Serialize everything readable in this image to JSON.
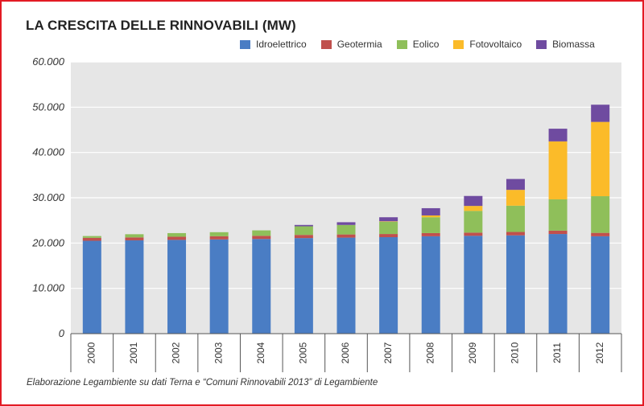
{
  "title": "LA CRESCITA DELLE RINNOVABILI (MW)",
  "caption": "Elaborazione Legambiente su dati Terna e “Comuni Rinnovabili 2013” di Legambiente",
  "colors": {
    "Idroelettrico": "#4a7dc4",
    "Geotermia": "#c0504d",
    "Eolico": "#8fbf5a",
    "Fotovoltaico": "#fbbb29",
    "Biomassa": "#6f4ba0",
    "plot_bg": "#e6e6e6",
    "grid": "#ffffff"
  },
  "chart_data": {
    "type": "bar",
    "stacked": true,
    "title": "LA CRESCITA DELLE RINNOVABILI (MW)",
    "xlabel": "",
    "ylabel": "",
    "ylim": [
      0,
      60000
    ],
    "yticks": [
      0,
      10000,
      20000,
      30000,
      40000,
      50000,
      60000
    ],
    "ytick_labels": [
      "0",
      "10.000",
      "20.000",
      "30.000",
      "40.000",
      "50.000",
      "60.000"
    ],
    "grid": true,
    "legend_position": "top",
    "categories": [
      "2000",
      "2001",
      "2002",
      "2003",
      "2004",
      "2005",
      "2006",
      "2007",
      "2008",
      "2009",
      "2010",
      "2011",
      "2012"
    ],
    "series": [
      {
        "name": "Idroelettrico",
        "values": [
          20500,
          20600,
          20700,
          20800,
          20900,
          21100,
          21200,
          21300,
          21500,
          21600,
          21700,
          22000,
          21500
        ]
      },
      {
        "name": "Geotermia",
        "values": [
          650,
          650,
          700,
          700,
          700,
          700,
          700,
          700,
          700,
          700,
          750,
          750,
          750
        ]
      },
      {
        "name": "Eolico",
        "values": [
          400,
          700,
          800,
          900,
          1200,
          1900,
          2100,
          2700,
          3500,
          4800,
          5800,
          6900,
          8100
        ]
      },
      {
        "name": "Fotovoltaico",
        "values": [
          0,
          0,
          0,
          0,
          0,
          0,
          0,
          100,
          400,
          1100,
          3500,
          12800,
          16400
        ]
      },
      {
        "name": "Biomassa",
        "values": [
          0,
          0,
          0,
          0,
          0,
          300,
          600,
          900,
          1600,
          2200,
          2400,
          2800,
          3800
        ]
      }
    ]
  }
}
